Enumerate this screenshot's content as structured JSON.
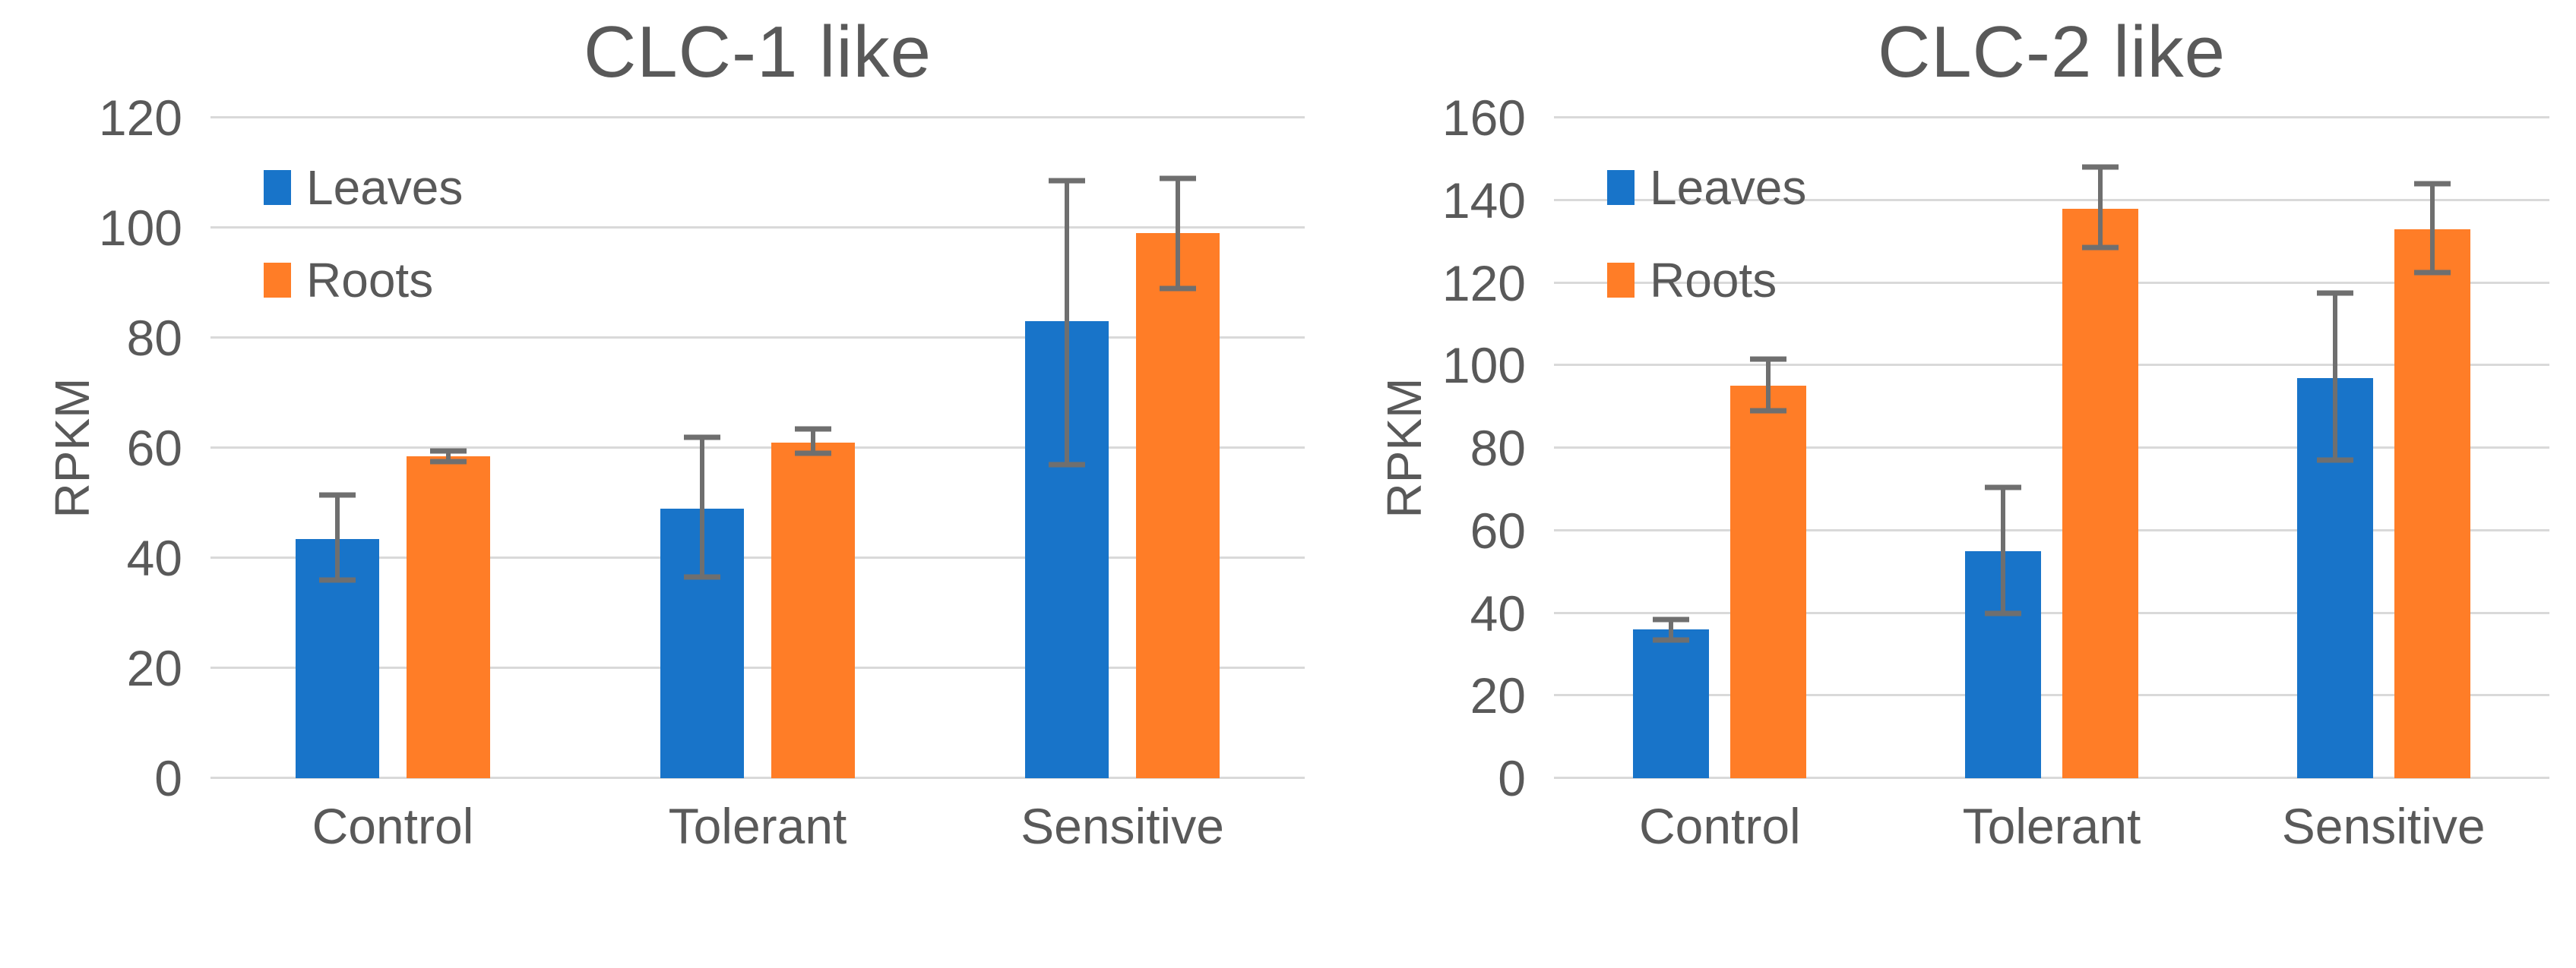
{
  "figure": {
    "background": "#ffffff",
    "gridline_color": "#d9d9d9",
    "text_color": "#595959",
    "error_bar_color": "#6f6f6f"
  },
  "chart_data": [
    {
      "type": "bar",
      "title": "CLC-1 like",
      "ylabel": "RPKM",
      "ylim": [
        0,
        120
      ],
      "yticks": [
        0,
        20,
        40,
        60,
        80,
        100,
        120
      ],
      "grid": "horizontal",
      "legend_position": "upper-left-inside",
      "categories": [
        "Control",
        "Tolerant",
        "Sensitive"
      ],
      "series": [
        {
          "name": "Leaves",
          "color": "#1874c9",
          "values": [
            43.5,
            49,
            83
          ],
          "error_low": [
            36,
            36.5,
            57
          ],
          "error_high": [
            51.5,
            62,
            108.5
          ]
        },
        {
          "name": "Roots",
          "color": "#ff7d27",
          "values": [
            58.5,
            61,
            99
          ],
          "error_low": [
            57.5,
            59,
            89
          ],
          "error_high": [
            59.5,
            63.5,
            109
          ]
        }
      ]
    },
    {
      "type": "bar",
      "title": "CLC-2 like",
      "ylabel": "RPKM",
      "ylim": [
        0,
        160
      ],
      "yticks": [
        0,
        20,
        40,
        60,
        80,
        100,
        120,
        140,
        160
      ],
      "grid": "horizontal",
      "legend_position": "upper-left-inside",
      "categories": [
        "Control",
        "Tolerant",
        "Sensitive"
      ],
      "series": [
        {
          "name": "Leaves",
          "color": "#1874c9",
          "values": [
            36,
            55,
            97
          ],
          "error_low": [
            33.5,
            40,
            77
          ],
          "error_high": [
            38.5,
            70.5,
            117.5
          ]
        },
        {
          "name": "Roots",
          "color": "#ff7d27",
          "values": [
            95,
            138,
            133
          ],
          "error_low": [
            89,
            128.5,
            122.5
          ],
          "error_high": [
            101.5,
            148,
            144
          ]
        }
      ]
    }
  ]
}
